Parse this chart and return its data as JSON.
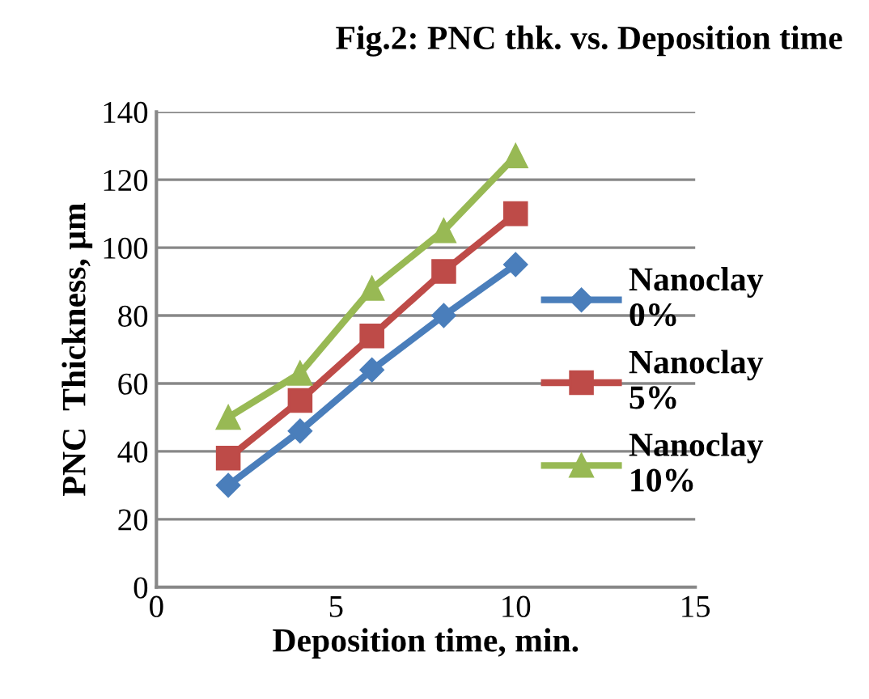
{
  "chart_data": {
    "type": "line",
    "title": "Fig.2: PNC thk. vs. Deposition time",
    "xlabel": "Deposition time, min.",
    "ylabel": "PNC  Thickness, μm",
    "x": [
      2,
      4,
      6,
      8,
      10
    ],
    "series": [
      {
        "name": "Nanoclay 0%",
        "color": "#4a7ebb",
        "values": [
          30,
          46,
          64,
          80,
          95
        ],
        "marker": "diamond"
      },
      {
        "name": "Nanoclay 5%",
        "color": "#be4b48",
        "values": [
          38,
          55,
          74,
          93,
          110
        ],
        "marker": "square"
      },
      {
        "name": "Nanoclay 10%",
        "color": "#98b954",
        "values": [
          50,
          63,
          88,
          105,
          127
        ],
        "marker": "triangle"
      }
    ],
    "xlim": [
      0,
      15
    ],
    "xticks": [
      0,
      5,
      10,
      15
    ],
    "ylim": [
      0,
      140
    ],
    "yticks": [
      0,
      20,
      40,
      60,
      80,
      100,
      120,
      140
    ],
    "grid": "y",
    "legend": "right",
    "line_style": "solid"
  }
}
